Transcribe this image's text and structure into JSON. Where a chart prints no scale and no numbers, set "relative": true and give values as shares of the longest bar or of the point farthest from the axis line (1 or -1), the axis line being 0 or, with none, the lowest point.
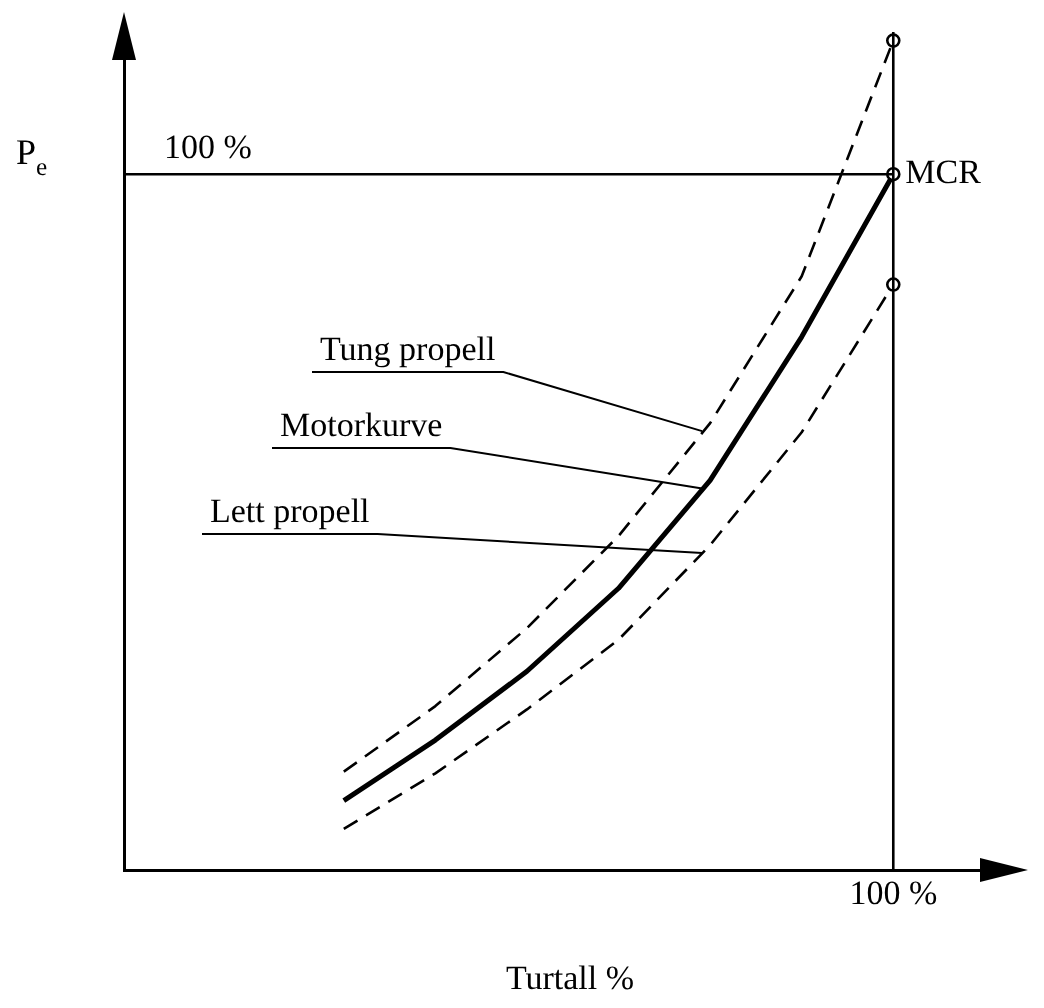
{
  "chart_data": {
    "type": "line",
    "relative": true,
    "xlabel": "Turtall %",
    "categories": [
      null,
      null,
      null,
      null,
      null,
      null,
      null
    ],
    "series": [
      {
        "name": "Tung propell",
        "color": "#000000",
        "line_style": "dashed",
        "values": [
          0.119,
          0.198,
          0.292,
          0.403,
          0.539,
          0.716,
          1.0
        ]
      },
      {
        "name": "Motorkurve",
        "color": "#000000",
        "line_style": "solid",
        "values": [
          0.084,
          0.157,
          0.24,
          0.34,
          0.47,
          0.643,
          0.839
        ]
      },
      {
        "name": "Lett propell",
        "color": "#000000",
        "line_style": "dashed",
        "values": [
          0.05,
          0.117,
          0.194,
          0.278,
          0.392,
          0.528,
          0.706
        ]
      }
    ],
    "ref_lines": [
      {
        "axis": "y",
        "value": 0.839,
        "label": null
      }
    ],
    "annotations": [
      "100 %",
      "100 %",
      "MCR",
      "P$_{e}$"
    ],
    "legend": false
  }
}
